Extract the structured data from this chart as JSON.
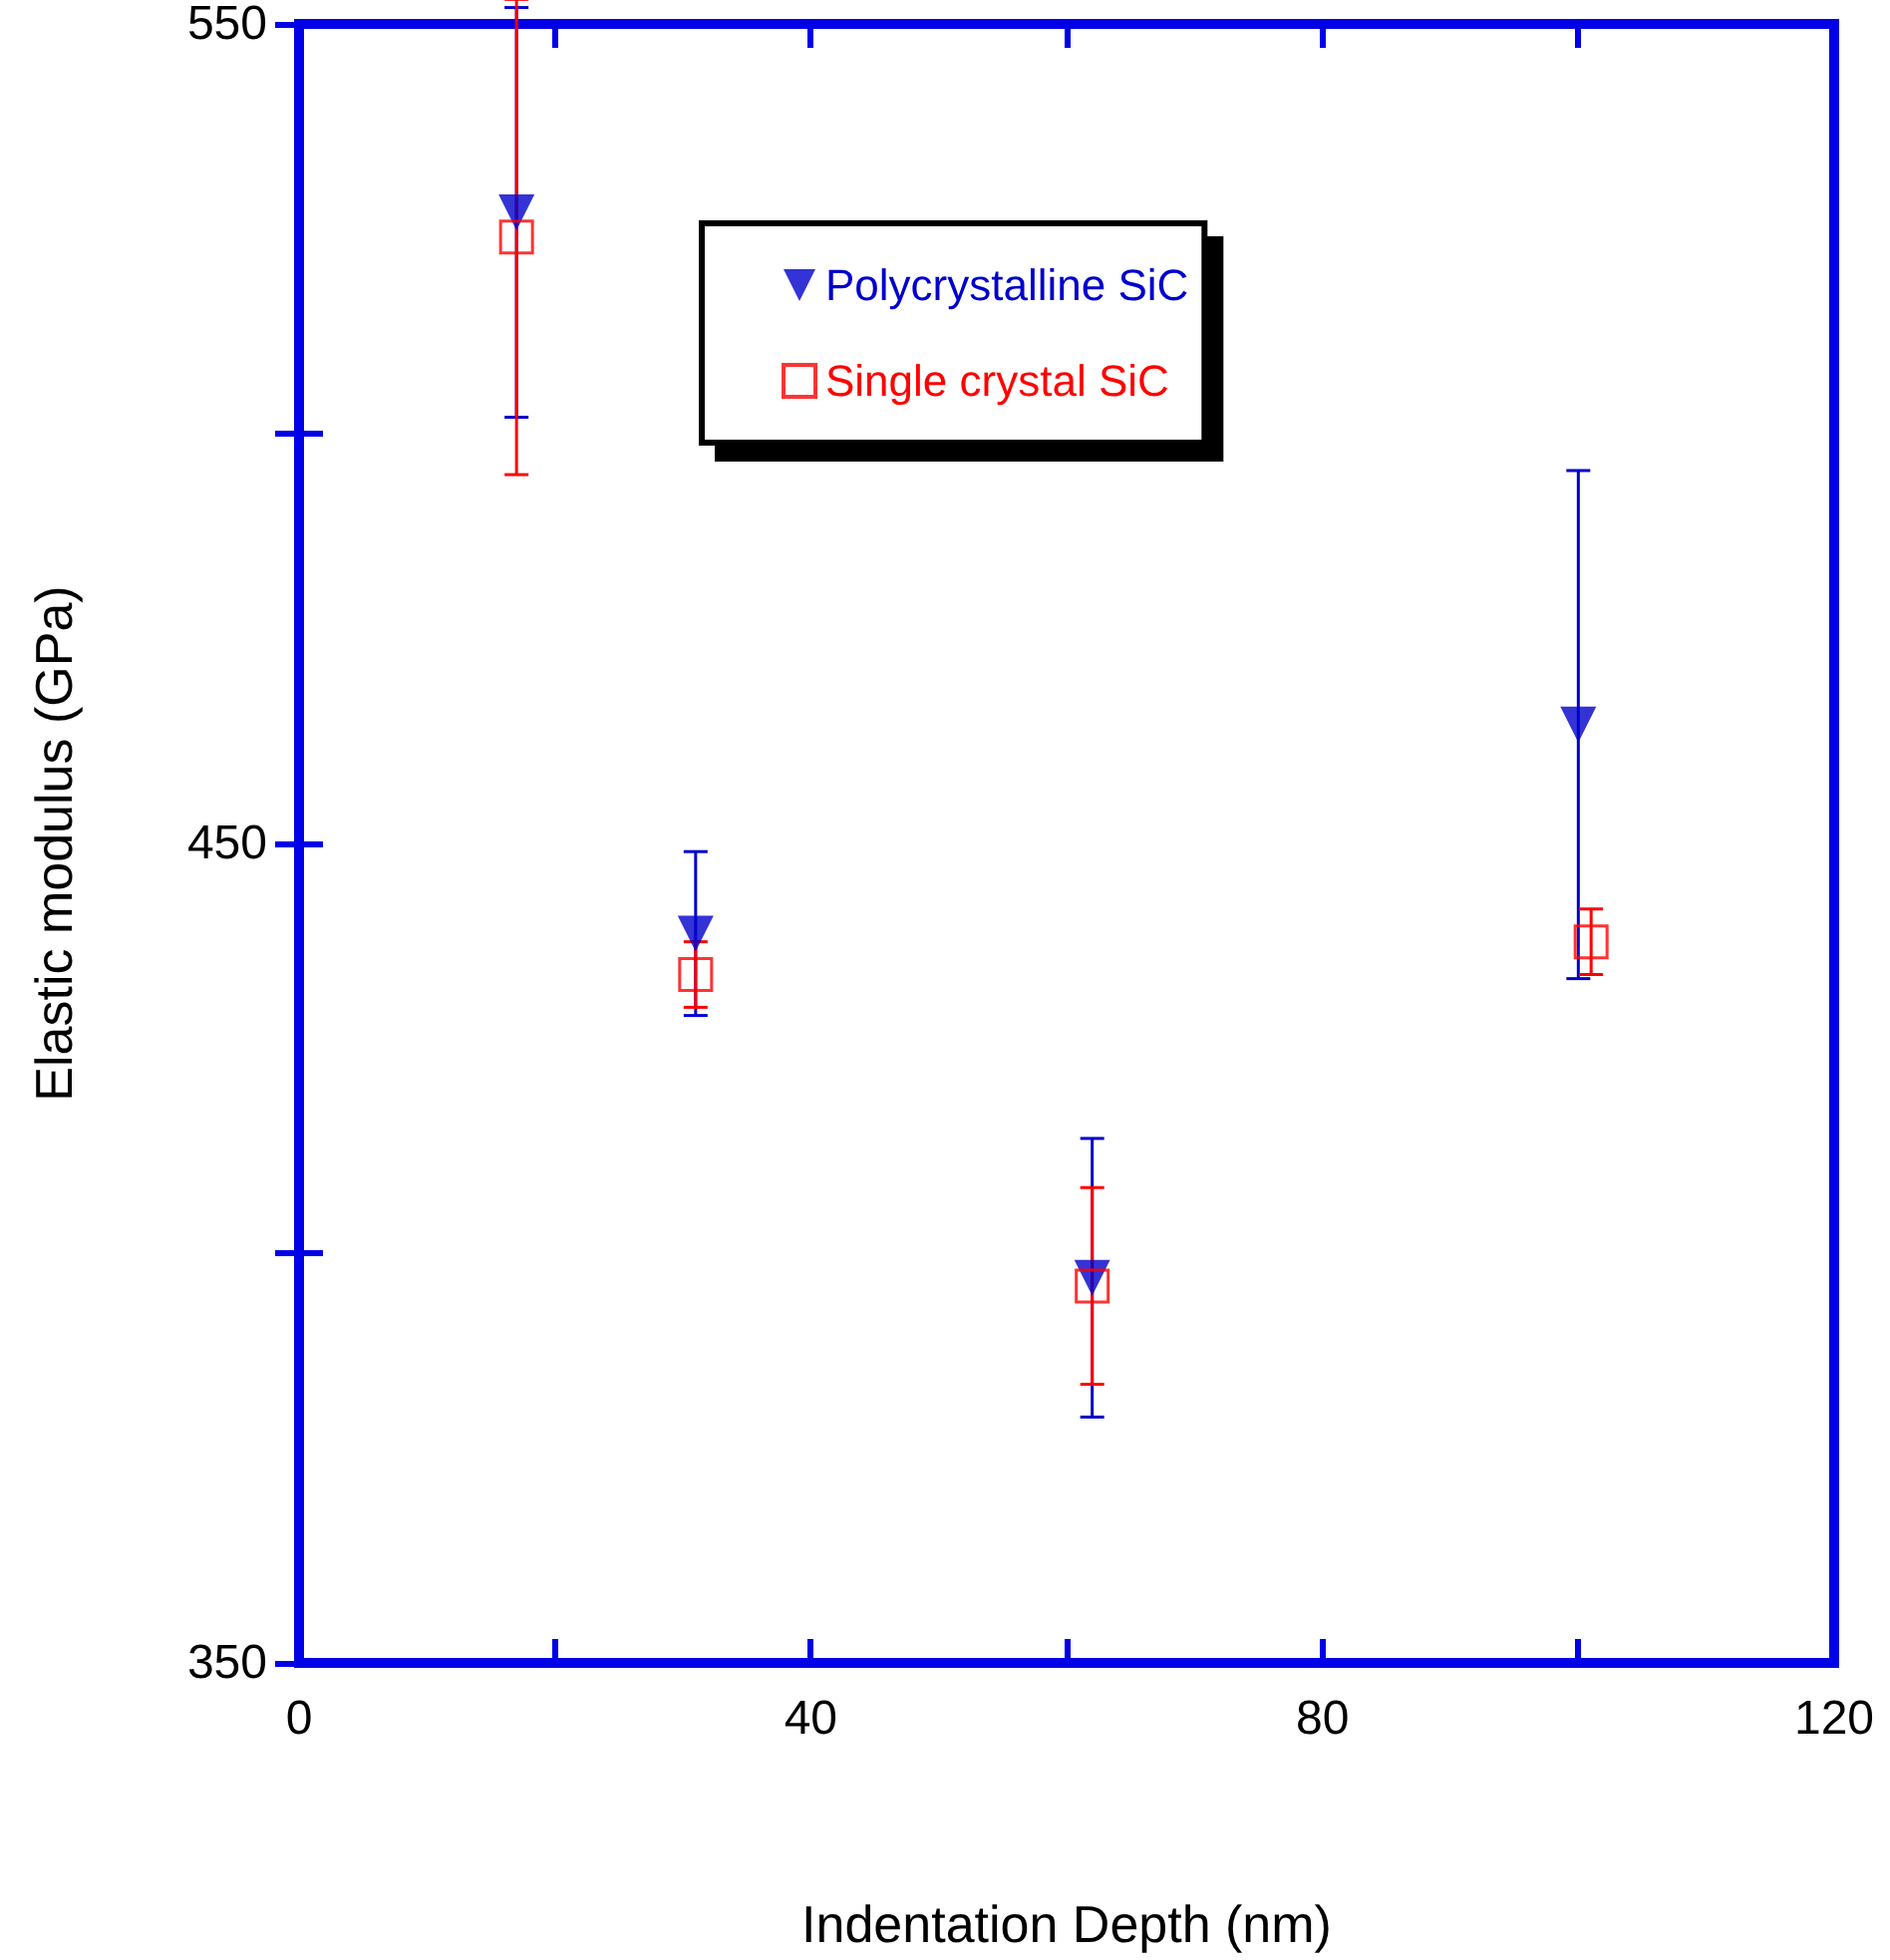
{
  "chart_data": {
    "type": "scatter",
    "xlabel": "Indentation Depth (nm)",
    "ylabel": "Elastic modulus (GPa)",
    "xlim": [
      0,
      120
    ],
    "xticks": [
      0,
      {
        "value": 20,
        "label": null
      },
      40,
      {
        "value": 60,
        "label": null
      },
      80,
      {
        "value": 100,
        "label": null
      },
      120
    ],
    "ylim": [
      350,
      550
    ],
    "yticks": [
      350,
      {
        "value": 400,
        "label": null
      },
      450,
      {
        "value": 500,
        "label": null
      },
      550
    ],
    "grid": false,
    "legend": "top",
    "series": [
      {
        "name": "Polycrystalline SiC",
        "color": "#0000cc",
        "marker": "triangle",
        "x": [
          17,
          31,
          62,
          100
        ],
        "values": [
          527,
          439,
          397,
          464.5
        ],
        "errors": [
          25,
          10,
          17,
          31
        ]
      },
      {
        "name": "Single crystal SiC",
        "color": "#ff0000",
        "marker": "square",
        "x": [
          17,
          31,
          62,
          101
        ],
        "values": [
          524,
          434,
          396,
          438
        ],
        "errors": [
          29,
          4,
          12,
          4
        ]
      }
    ]
  }
}
